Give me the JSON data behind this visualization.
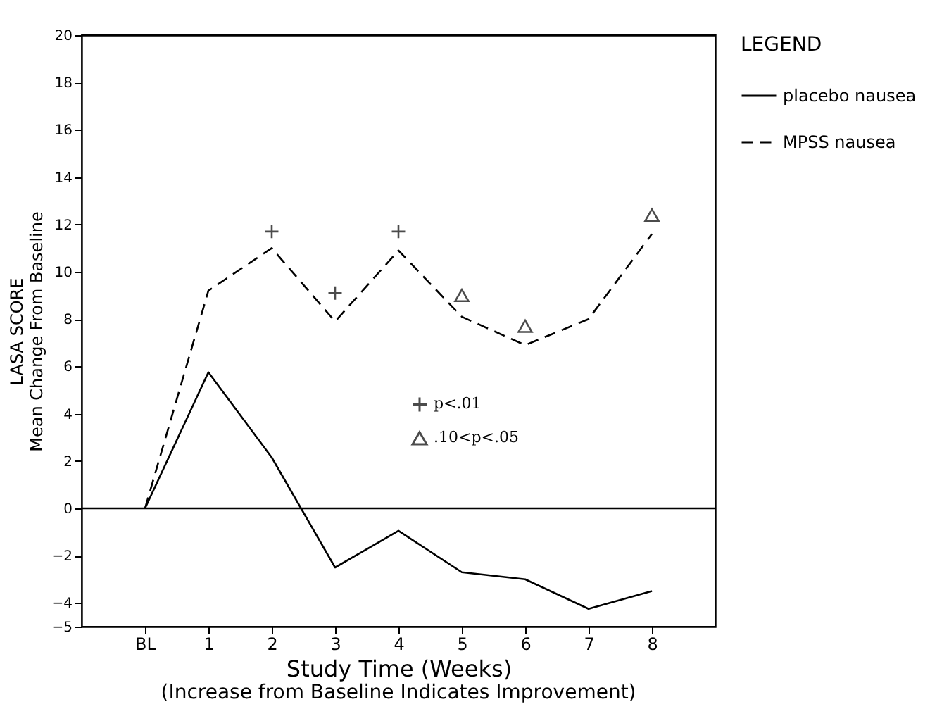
{
  "chart_data": {
    "type": "line",
    "xlabel": "Study Time (Weeks)",
    "ylabel": "LASA SCORE\nMean Change From Baseline",
    "legend_title": "LEGEND",
    "legend": "right",
    "annotations": [
      "(Increase from Baseline Indicates Improvement)"
    ],
    "categories": [
      "BL",
      "1",
      "2",
      "3",
      "4",
      "5",
      "6",
      "7",
      "8"
    ],
    "ylim": [
      -5,
      20
    ],
    "yticks": [
      -5,
      -4,
      -2,
      0,
      2,
      4,
      6,
      8,
      10,
      12,
      14,
      16,
      18,
      20
    ],
    "grid": false,
    "ref_lines": [
      {
        "axis": "y",
        "value": 0,
        "color": "#000000",
        "line_style": "solid"
      }
    ],
    "series": [
      {
        "name": "placebo nausea",
        "color": "#000000",
        "line_style": "solid",
        "marker": "none",
        "values": [
          0,
          5.75,
          2.15,
          -2.5,
          -0.95,
          -2.7,
          -3.0,
          -4.25,
          -3.5
        ]
      },
      {
        "name": "MPSS nausea",
        "color": "#000000",
        "line_style": "dashed",
        "marker": "none",
        "values": [
          0,
          9.2,
          11.0,
          7.9,
          10.9,
          8.1,
          6.9,
          8.0,
          11.6
        ]
      },
      {
        "name": "p<.01",
        "type": "scatter",
        "color": "#000000",
        "marker": "cross",
        "values": [
          null,
          null,
          11.7,
          9.1,
          11.7,
          null,
          null,
          null,
          null
        ]
      },
      {
        "name": ".10<p<.05",
        "type": "scatter",
        "color": "#000000",
        "marker": "triangle",
        "values": [
          null,
          null,
          null,
          null,
          null,
          9.0,
          7.7,
          null,
          12.4
        ]
      }
    ]
  }
}
